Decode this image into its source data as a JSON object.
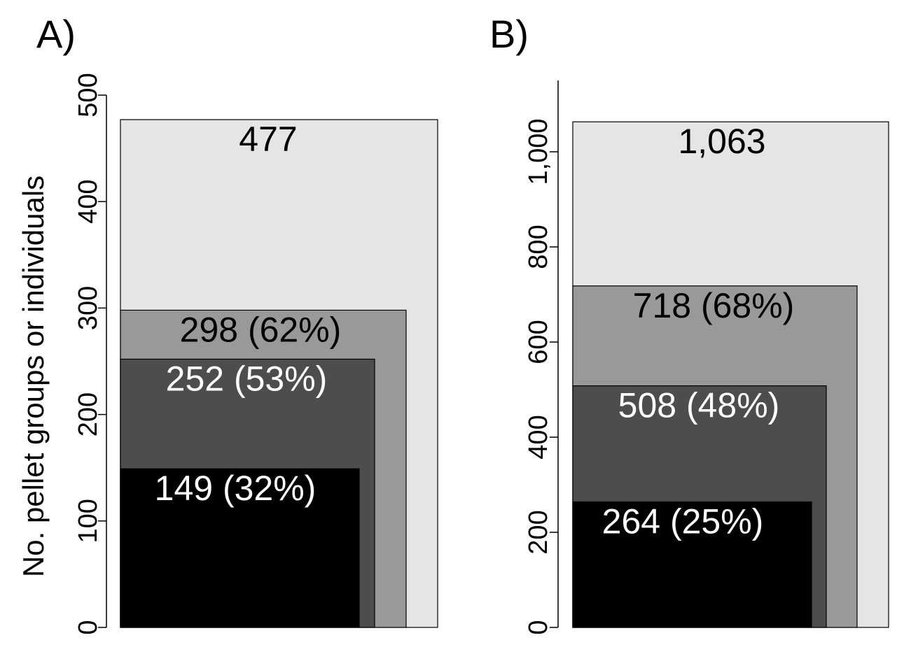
{
  "ylabel": "No. pellet groups or individuals",
  "chart_data": [
    {
      "type": "bar",
      "panel_label": "A)",
      "ylim": [
        0,
        500
      ],
      "ticks": [
        0,
        100,
        200,
        300,
        400,
        500
      ],
      "tick_labels": [
        "0",
        "100",
        "200",
        "300",
        "400",
        "500"
      ],
      "bars": [
        {
          "value": 477,
          "label": "477",
          "fill": "#e5e5e5",
          "text_color": "#000000"
        },
        {
          "value": 298,
          "label": "298 (62%)",
          "fill": "#999999",
          "text_color": "#000000"
        },
        {
          "value": 252,
          "label": "252 (53%)",
          "fill": "#4d4d4d",
          "text_color": "#ffffff"
        },
        {
          "value": 149,
          "label": "149 (32%)",
          "fill": "#000000",
          "text_color": "#ffffff"
        }
      ]
    },
    {
      "type": "bar",
      "panel_label": "B)",
      "ylim": [
        0,
        1150
      ],
      "ticks": [
        0,
        200,
        400,
        600,
        800,
        1000
      ],
      "tick_labels": [
        "0",
        "200",
        "400",
        "600",
        "800",
        "1,000"
      ],
      "bars": [
        {
          "value": 1063,
          "label": "1,063",
          "fill": "#e5e5e5",
          "text_color": "#000000"
        },
        {
          "value": 718,
          "label": "718 (68%)",
          "fill": "#999999",
          "text_color": "#000000"
        },
        {
          "value": 508,
          "label": "508 (48%)",
          "fill": "#4d4d4d",
          "text_color": "#ffffff"
        },
        {
          "value": 264,
          "label": "264 (25%)",
          "fill": "#000000",
          "text_color": "#ffffff"
        }
      ]
    }
  ]
}
